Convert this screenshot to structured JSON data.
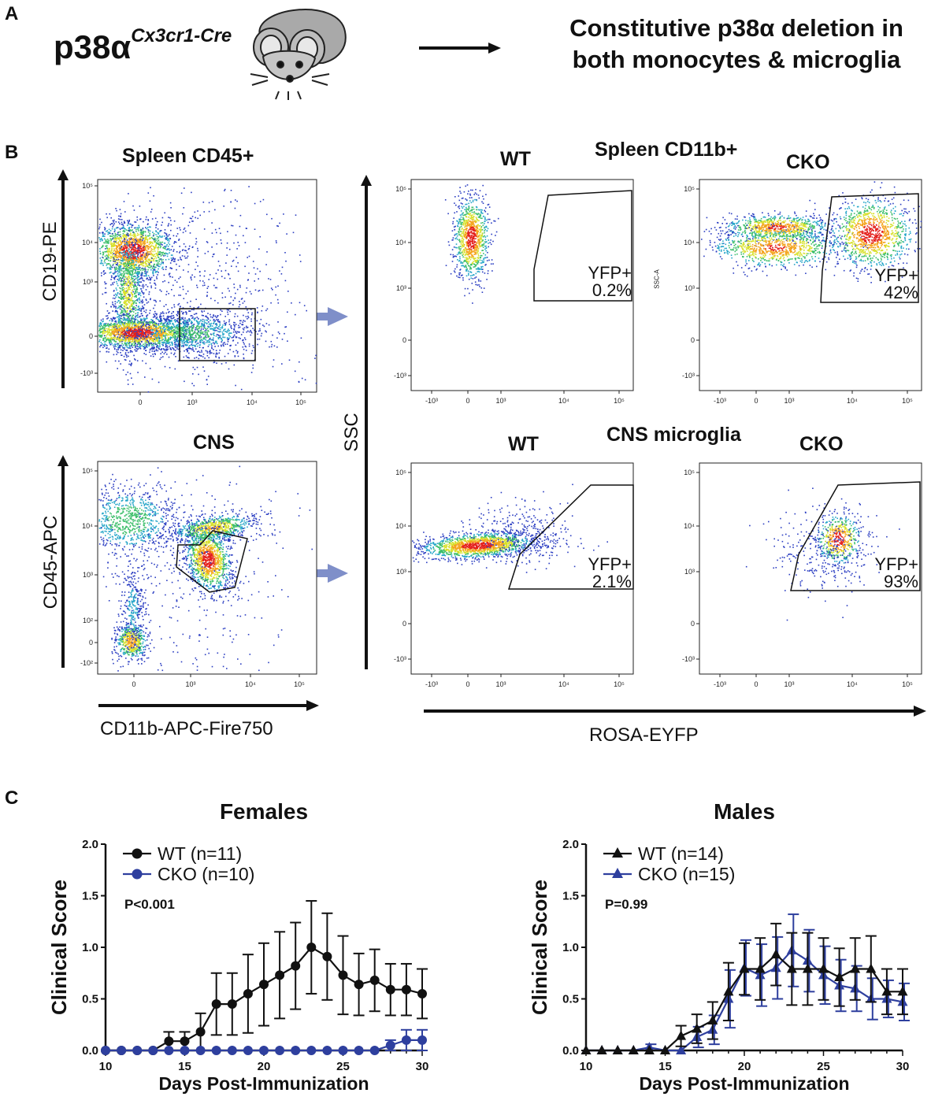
{
  "panel_a": {
    "letter": "A",
    "genotype_base": "p38α",
    "genotype_super": "Cx3cr1-Cre",
    "description_line1": "Constitutive p38α deletion in",
    "description_line2": "both monocytes & microglia"
  },
  "panel_b": {
    "letter": "B",
    "spleen_cd45_title": "Spleen CD45+",
    "cns_title": "CNS",
    "spleen_cd11b_title": "Spleen CD11b+",
    "cns_microglia_title": "CNS microglia",
    "wt_label": "WT",
    "cko_label": "CKO",
    "y_label_cd19": "CD19-PE",
    "y_label_cd45": "CD45-APC",
    "x_label_cd11b": "CD11b-APC-Fire750",
    "y_label_ssc": "SSC",
    "x_label_rosa": "ROSA-EYFP",
    "ssc_a_small": "SSC-A",
    "gate_yfp": "YFP+",
    "spleen_wt_pct": "0.2%",
    "spleen_cko_pct": "42%",
    "cns_wt_pct": "2.1%",
    "cns_cko_pct": "93%",
    "flow_ticks_y": [
      "10⁵",
      "10⁴",
      "10³",
      "0",
      "-10³"
    ],
    "flow_ticks_y_cns": [
      "10⁵",
      "10⁴",
      "10³",
      "10²",
      "0",
      "-10²"
    ],
    "flow_ticks_x": [
      "0",
      "10³",
      "10⁴",
      "10⁵"
    ],
    "flow_ticks_x_neg": [
      "-10³",
      "0",
      "10³",
      "10⁴",
      "10⁵"
    ]
  },
  "panel_c": {
    "letter": "C"
  },
  "chart_data": [
    {
      "type": "line",
      "title": "Females",
      "xlabel": "Days Post-Immunization",
      "ylabel": "Clinical Score",
      "xlim": [
        10,
        30
      ],
      "ylim": [
        0,
        2.0
      ],
      "x_ticks": [
        "10",
        "15",
        "20",
        "25",
        "30"
      ],
      "y_ticks": [
        "0.0",
        "0.5",
        "1.0",
        "1.5",
        "2.0"
      ],
      "annotation": "P<0.001",
      "marker": "circle",
      "x": [
        10,
        11,
        12,
        13,
        14,
        15,
        16,
        17,
        18,
        19,
        20,
        21,
        22,
        23,
        24,
        25,
        26,
        27,
        28,
        29,
        30
      ],
      "series": [
        {
          "name": "WT (n=11)",
          "color": "#111111",
          "values": [
            0,
            0,
            0,
            0,
            0.09,
            0.09,
            0.18,
            0.45,
            0.45,
            0.55,
            0.64,
            0.73,
            0.82,
            1.0,
            0.91,
            0.73,
            0.64,
            0.68,
            0.59,
            0.59,
            0.55
          ],
          "errors": [
            0,
            0,
            0,
            0,
            0.09,
            0.09,
            0.18,
            0.3,
            0.3,
            0.38,
            0.4,
            0.42,
            0.42,
            0.45,
            0.42,
            0.38,
            0.3,
            0.3,
            0.25,
            0.25,
            0.24
          ]
        },
        {
          "name": "CKO (n=10)",
          "color": "#2e3f9e",
          "values": [
            0,
            0,
            0,
            0,
            0,
            0,
            0,
            0,
            0,
            0,
            0,
            0,
            0,
            0,
            0,
            0,
            0,
            0,
            0.05,
            0.1,
            0.1
          ],
          "errors": [
            0,
            0,
            0,
            0,
            0,
            0,
            0,
            0,
            0,
            0,
            0,
            0,
            0,
            0,
            0,
            0,
            0,
            0,
            0.05,
            0.1,
            0.1
          ]
        }
      ]
    },
    {
      "type": "line",
      "title": "Males",
      "xlabel": "Days Post-Immunization",
      "ylabel": "Clinical Score",
      "xlim": [
        10,
        30
      ],
      "ylim": [
        0,
        2.0
      ],
      "x_ticks": [
        "10",
        "15",
        "20",
        "25",
        "30"
      ],
      "y_ticks": [
        "0.0",
        "0.5",
        "1.0",
        "1.5",
        "2.0"
      ],
      "annotation": "P=0.99",
      "marker": "triangle",
      "x": [
        10,
        11,
        12,
        13,
        14,
        15,
        16,
        17,
        18,
        19,
        20,
        21,
        22,
        23,
        24,
        25,
        26,
        27,
        28,
        29,
        30
      ],
      "series": [
        {
          "name": "WT (n=14)",
          "color": "#111111",
          "values": [
            0,
            0,
            0,
            0,
            0,
            0,
            0.14,
            0.21,
            0.29,
            0.57,
            0.79,
            0.79,
            0.93,
            0.79,
            0.79,
            0.79,
            0.71,
            0.79,
            0.79,
            0.57,
            0.57
          ],
          "errors": [
            0,
            0,
            0,
            0,
            0,
            0,
            0.1,
            0.14,
            0.18,
            0.28,
            0.25,
            0.3,
            0.3,
            0.35,
            0.35,
            0.3,
            0.28,
            0.3,
            0.32,
            0.22,
            0.22
          ]
        },
        {
          "name": "CKO (n=15)",
          "color": "#2e3f9e",
          "values": [
            0,
            0,
            0,
            0,
            0.03,
            0,
            0,
            0.13,
            0.2,
            0.5,
            0.8,
            0.73,
            0.8,
            0.97,
            0.87,
            0.73,
            0.63,
            0.6,
            0.5,
            0.5,
            0.47
          ],
          "errors": [
            0,
            0,
            0,
            0,
            0.03,
            0,
            0,
            0.1,
            0.14,
            0.28,
            0.27,
            0.3,
            0.3,
            0.35,
            0.3,
            0.28,
            0.25,
            0.22,
            0.2,
            0.18,
            0.18
          ]
        }
      ]
    }
  ]
}
